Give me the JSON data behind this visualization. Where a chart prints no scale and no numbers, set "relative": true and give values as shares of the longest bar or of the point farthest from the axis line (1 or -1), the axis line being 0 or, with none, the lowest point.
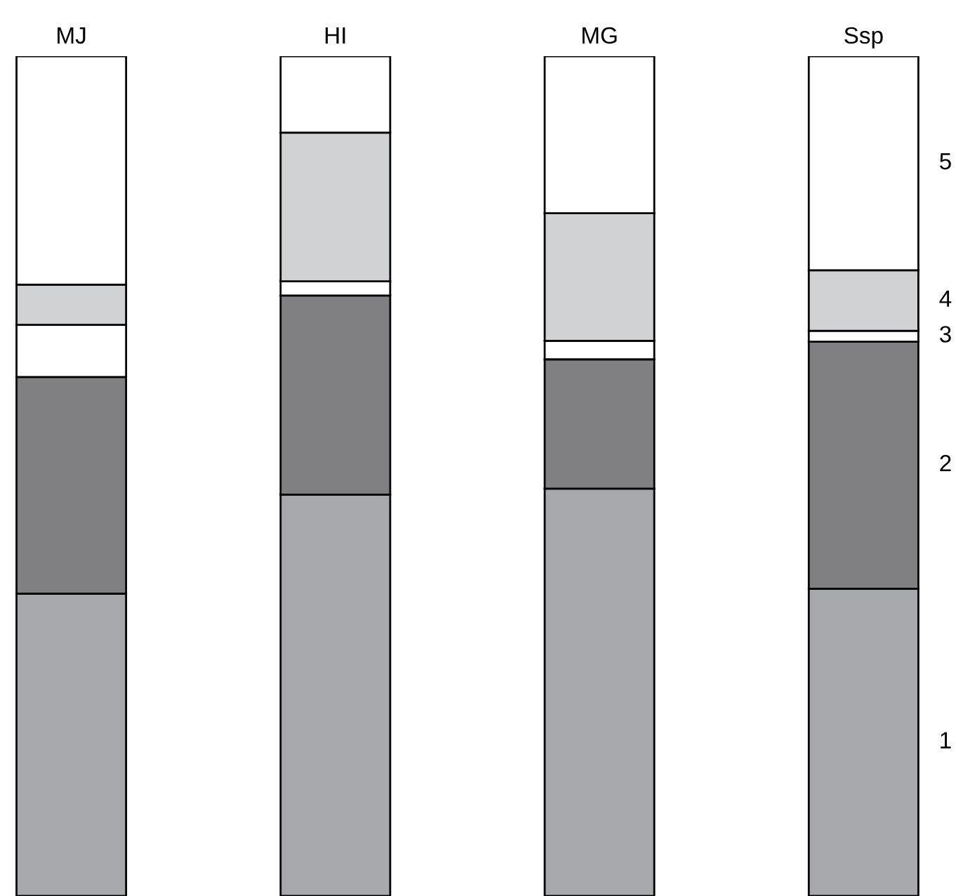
{
  "chart_data": {
    "type": "bar",
    "stacked": true,
    "relative": true,
    "categories": [
      "MJ",
      "HI",
      "MG",
      "Ssp"
    ],
    "series": [
      {
        "name": "1",
        "color": "#a7a8ab",
        "values": [
          0.36,
          0.478,
          0.485,
          0.366
        ]
      },
      {
        "name": "2",
        "color": "#808083",
        "values": [
          0.258,
          0.237,
          0.154,
          0.294
        ]
      },
      {
        "name": "3",
        "color": "#ffffff",
        "values": [
          0.062,
          0.017,
          0.022,
          0.013
        ]
      },
      {
        "name": "4",
        "color": "#d1d2d4",
        "values": [
          0.048,
          0.177,
          0.152,
          0.072
        ]
      },
      {
        "name": "5",
        "color": "#ffffff",
        "values": [
          0.272,
          0.091,
          0.187,
          0.255
        ]
      }
    ]
  }
}
